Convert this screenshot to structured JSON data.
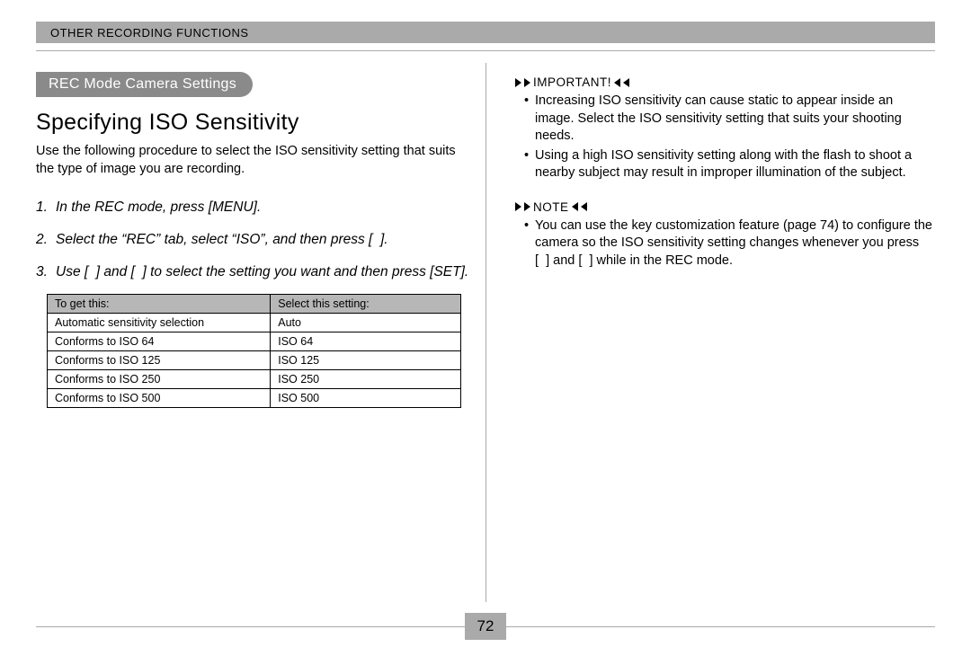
{
  "header": {
    "chapter": "OTHER RECORDING FUNCTIONS"
  },
  "left": {
    "pill": "REC Mode Camera Settings",
    "heading": "Specifying ISO Sensitivity",
    "intro": "Use the following procedure to select the ISO sensitivity setting that suits the type of image you are recording.",
    "steps": [
      "In the REC mode, press [MENU].",
      "Select the “REC” tab, select “ISO”, and then press [  ].",
      "Use [  ] and [  ] to select the setting you want and then press [SET]."
    ],
    "table": {
      "columns": [
        "To get this:",
        "Select this setting:"
      ],
      "rows": [
        [
          "Automatic sensitivity selection",
          "Auto"
        ],
        [
          "Conforms to ISO 64",
          "ISO 64"
        ],
        [
          "Conforms to ISO 125",
          "ISO 125"
        ],
        [
          "Conforms to ISO 250",
          "ISO 250"
        ],
        [
          "Conforms to ISO 500",
          "ISO 500"
        ]
      ],
      "col1_width": "54%",
      "col2_width": "46%"
    }
  },
  "right": {
    "important": {
      "title": "IMPORTANT!",
      "items": [
        "Increasing ISO sensitivity can cause static to appear inside an image. Select the ISO sensitivity setting that suits your shooting needs.",
        "Using a high ISO sensitivity setting along with the flash to shoot a nearby subject may result in improper illumination of the subject."
      ]
    },
    "note": {
      "title": "NOTE",
      "items": [
        "You can use the key customization feature (page 74) to configure the camera so the ISO sensitivity setting changes whenever you press [  ] and [  ] while in the REC mode."
      ]
    }
  },
  "page_number": "72",
  "colors": {
    "banner_bg": "#aaaaaa",
    "pill_bg": "#8a8a8a",
    "rule": "#aaaaaa",
    "table_header_bg": "#b7b7b7"
  }
}
